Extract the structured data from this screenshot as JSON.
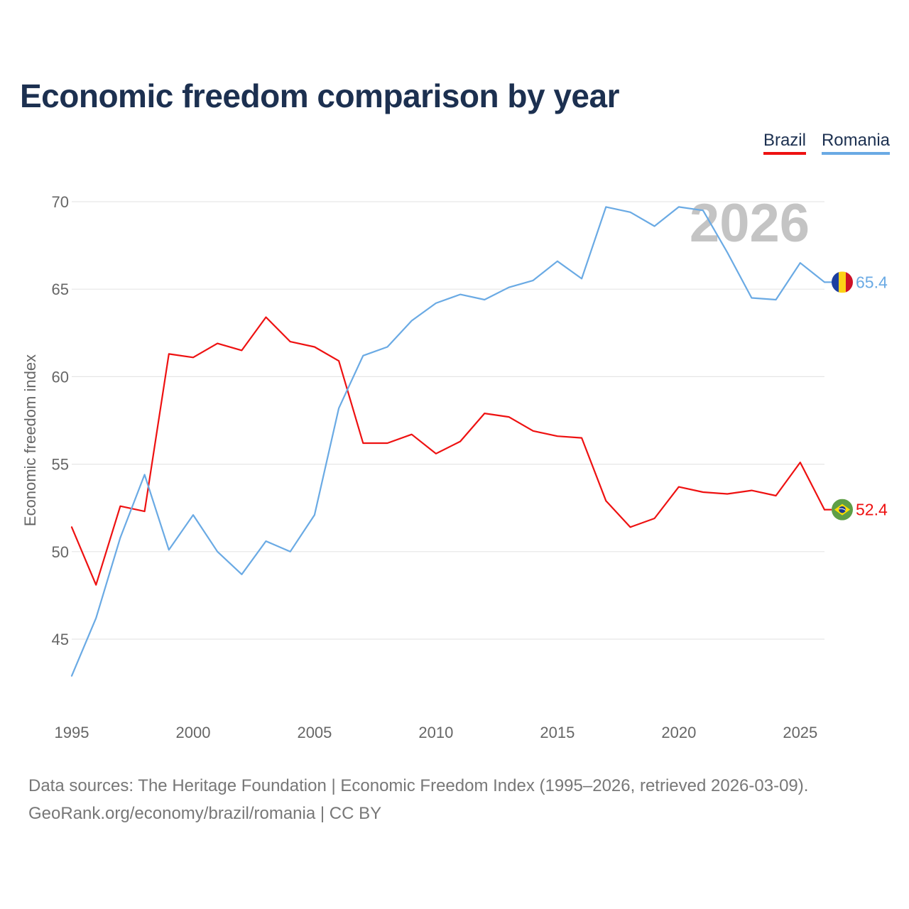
{
  "title": "Economic freedom comparison by year",
  "footer": {
    "line1": "Data sources: The Heritage Foundation | Economic Freedom Index (1995–2026, retrieved 2026-03-09).",
    "line2": "GeoRank.org/economy/brazil/romania | CC BY"
  },
  "colors": {
    "brazil": "#ee1111",
    "romania": "#6aaae4",
    "grid": "#e6e6e6",
    "tick_text": "#666666",
    "year_watermark": "#c4c4c4"
  },
  "chart_data": {
    "type": "line",
    "title": "Economic freedom comparison by year",
    "xlabel": "",
    "ylabel": "Economic freedom index",
    "xlim": [
      1995,
      2026
    ],
    "ylim": [
      43,
      70
    ],
    "x_ticks": [
      1995,
      2000,
      2005,
      2010,
      2015,
      2020,
      2025
    ],
    "y_ticks": [
      45,
      50,
      55,
      60,
      65,
      70
    ],
    "grid": true,
    "legend_position": "top-right",
    "year_label": "2026",
    "x": [
      1995,
      1996,
      1997,
      1998,
      1999,
      2000,
      2001,
      2002,
      2003,
      2004,
      2005,
      2006,
      2007,
      2008,
      2009,
      2010,
      2011,
      2012,
      2013,
      2014,
      2015,
      2016,
      2017,
      2018,
      2019,
      2020,
      2021,
      2022,
      2023,
      2024,
      2025,
      2026
    ],
    "series": [
      {
        "name": "Brazil",
        "color": "#ee1111",
        "end_label": "52.4",
        "flag": "brazil",
        "values": [
          51.4,
          48.1,
          52.6,
          52.3,
          61.3,
          61.1,
          61.9,
          61.5,
          63.4,
          62.0,
          61.7,
          60.9,
          56.2,
          56.2,
          56.7,
          55.6,
          56.3,
          57.9,
          57.7,
          56.9,
          56.6,
          56.5,
          52.9,
          51.4,
          51.9,
          53.7,
          53.4,
          53.3,
          53.5,
          53.2,
          55.1,
          52.4
        ]
      },
      {
        "name": "Romania",
        "color": "#6aaae4",
        "end_label": "65.4",
        "flag": "romania",
        "values": [
          42.9,
          46.2,
          50.8,
          54.4,
          50.1,
          52.1,
          50.0,
          48.7,
          50.6,
          50.0,
          52.1,
          58.2,
          61.2,
          61.7,
          63.2,
          64.2,
          64.7,
          64.4,
          65.1,
          65.5,
          66.6,
          65.6,
          69.7,
          69.4,
          68.6,
          69.7,
          69.5,
          67.1,
          64.5,
          64.4,
          66.5,
          65.4
        ]
      }
    ]
  }
}
